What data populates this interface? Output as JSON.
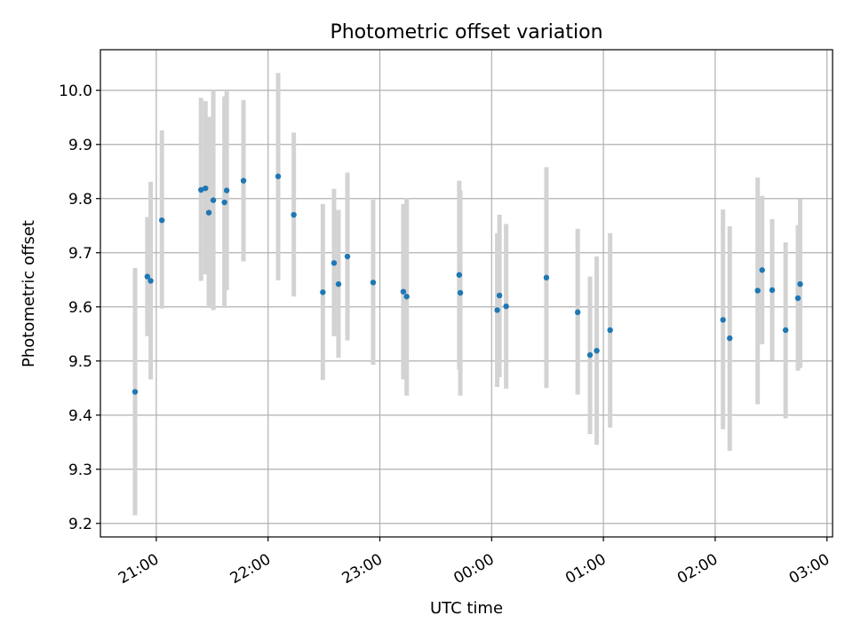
{
  "chart_data": {
    "type": "scatter",
    "title": "Photometric offset variation",
    "xlabel": "UTC time",
    "ylabel": "Photometric offset",
    "x_unit": "hours past 00:00 UTC (negative = previous day)",
    "xlim": [
      -3.5,
      3.05
    ],
    "ylim": [
      9.175,
      10.075
    ],
    "x_ticks": [
      {
        "v": -3,
        "label": "21:00"
      },
      {
        "v": -2,
        "label": "22:00"
      },
      {
        "v": -1,
        "label": "23:00"
      },
      {
        "v": 0,
        "label": "00:00"
      },
      {
        "v": 1,
        "label": "01:00"
      },
      {
        "v": 2,
        "label": "02:00"
      },
      {
        "v": 3,
        "label": "03:00"
      }
    ],
    "y_ticks": [
      {
        "v": 9.2,
        "label": "9.2"
      },
      {
        "v": 9.3,
        "label": "9.3"
      },
      {
        "v": 9.4,
        "label": "9.4"
      },
      {
        "v": 9.5,
        "label": "9.5"
      },
      {
        "v": 9.6,
        "label": "9.6"
      },
      {
        "v": 9.7,
        "label": "9.7"
      },
      {
        "v": 9.8,
        "label": "9.8"
      },
      {
        "v": 9.9,
        "label": "9.9"
      },
      {
        "v": 10.0,
        "label": "10.0"
      }
    ],
    "grid": true,
    "marker_color": "#1f77b4",
    "errorbar_color": "#d3d3d3",
    "points": [
      {
        "x": -3.19,
        "y": 9.443,
        "lo": 9.215,
        "hi": 9.672
      },
      {
        "x": -3.08,
        "y": 9.656,
        "lo": 9.546,
        "hi": 9.766
      },
      {
        "x": -3.05,
        "y": 9.648,
        "lo": 9.466,
        "hi": 9.831
      },
      {
        "x": -2.95,
        "y": 9.76,
        "lo": 9.597,
        "hi": 9.926
      },
      {
        "x": -2.6,
        "y": 9.816,
        "lo": 9.648,
        "hi": 9.986
      },
      {
        "x": -2.56,
        "y": 9.819,
        "lo": 9.66,
        "hi": 9.98
      },
      {
        "x": -2.53,
        "y": 9.774,
        "lo": 9.598,
        "hi": 9.951
      },
      {
        "x": -2.49,
        "y": 9.797,
        "lo": 9.594,
        "hi": 10.0
      },
      {
        "x": -2.39,
        "y": 9.793,
        "lo": 9.598,
        "hi": 9.989
      },
      {
        "x": -2.37,
        "y": 9.815,
        "lo": 9.631,
        "hi": 9.998
      },
      {
        "x": -2.22,
        "y": 9.833,
        "lo": 9.684,
        "hi": 9.982
      },
      {
        "x": -1.91,
        "y": 9.841,
        "lo": 9.649,
        "hi": 10.032
      },
      {
        "x": -1.77,
        "y": 9.77,
        "lo": 9.619,
        "hi": 9.922
      },
      {
        "x": -1.51,
        "y": 9.627,
        "lo": 9.465,
        "hi": 9.79
      },
      {
        "x": -1.41,
        "y": 9.681,
        "lo": 9.546,
        "hi": 9.818
      },
      {
        "x": -1.37,
        "y": 9.642,
        "lo": 9.506,
        "hi": 9.779
      },
      {
        "x": -1.29,
        "y": 9.693,
        "lo": 9.538,
        "hi": 9.848
      },
      {
        "x": -1.06,
        "y": 9.645,
        "lo": 9.493,
        "hi": 9.798
      },
      {
        "x": -0.79,
        "y": 9.628,
        "lo": 9.466,
        "hi": 9.79
      },
      {
        "x": -0.76,
        "y": 9.619,
        "lo": 9.436,
        "hi": 9.801
      },
      {
        "x": -0.29,
        "y": 9.659,
        "lo": 9.484,
        "hi": 9.833
      },
      {
        "x": -0.28,
        "y": 9.626,
        "lo": 9.436,
        "hi": 9.815
      },
      {
        "x": 0.05,
        "y": 9.594,
        "lo": 9.452,
        "hi": 9.736
      },
      {
        "x": 0.07,
        "y": 9.621,
        "lo": 9.47,
        "hi": 9.77
      },
      {
        "x": 0.13,
        "y": 9.601,
        "lo": 9.449,
        "hi": 9.753
      },
      {
        "x": 0.49,
        "y": 9.654,
        "lo": 9.45,
        "hi": 9.858
      },
      {
        "x": 0.77,
        "y": 9.59,
        "lo": 9.438,
        "hi": 9.744
      },
      {
        "x": 0.88,
        "y": 9.511,
        "lo": 9.365,
        "hi": 9.656
      },
      {
        "x": 0.94,
        "y": 9.519,
        "lo": 9.345,
        "hi": 9.693
      },
      {
        "x": 1.06,
        "y": 9.557,
        "lo": 9.377,
        "hi": 9.736
      },
      {
        "x": 2.07,
        "y": 9.576,
        "lo": 9.374,
        "hi": 9.78
      },
      {
        "x": 2.13,
        "y": 9.542,
        "lo": 9.334,
        "hi": 9.749
      },
      {
        "x": 2.38,
        "y": 9.63,
        "lo": 9.42,
        "hi": 9.839
      },
      {
        "x": 2.42,
        "y": 9.668,
        "lo": 9.531,
        "hi": 9.805
      },
      {
        "x": 2.51,
        "y": 9.631,
        "lo": 9.501,
        "hi": 9.762
      },
      {
        "x": 2.63,
        "y": 9.557,
        "lo": 9.394,
        "hi": 9.719
      },
      {
        "x": 2.74,
        "y": 9.616,
        "lo": 9.482,
        "hi": 9.751
      },
      {
        "x": 2.76,
        "y": 9.642,
        "lo": 9.487,
        "hi": 9.799
      }
    ]
  }
}
